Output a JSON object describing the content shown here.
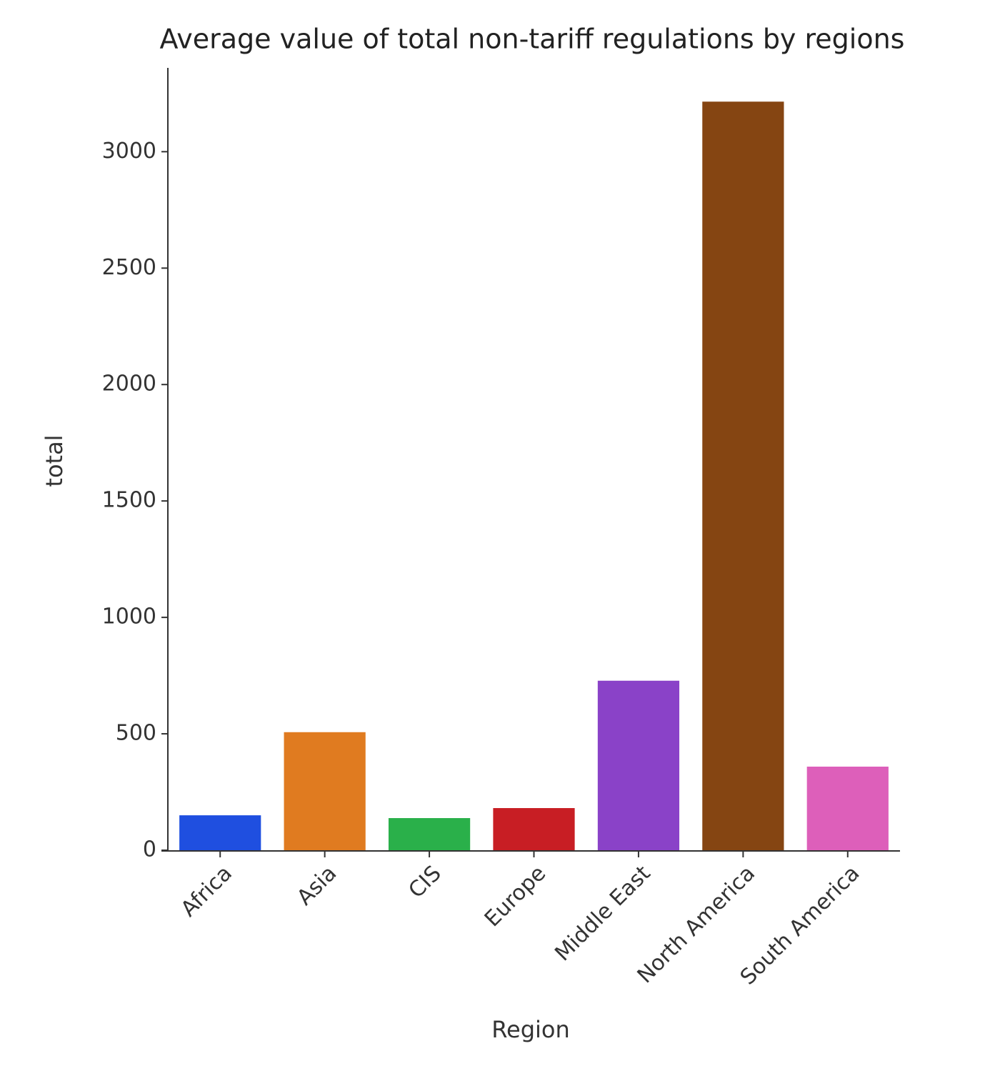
{
  "chart_data": {
    "type": "bar",
    "title": "Average value of total non-tariff regulations by regions",
    "x_label": "Region",
    "y_label": "total",
    "categories": [
      "Africa",
      "Asia",
      "CIS",
      "Europe",
      "Middle East",
      "North America",
      "South America"
    ],
    "values": [
      150,
      507,
      138,
      181,
      728,
      3215,
      359
    ],
    "colors": [
      "#1f4fe0",
      "#e07b20",
      "#2ab04a",
      "#c81e24",
      "#8a42c8",
      "#854512",
      "#dd5fba"
    ],
    "ylim": [
      0,
      3360
    ],
    "yticks": [
      0,
      500,
      1000,
      1500,
      2000,
      2500,
      3000
    ],
    "grid": false
  }
}
